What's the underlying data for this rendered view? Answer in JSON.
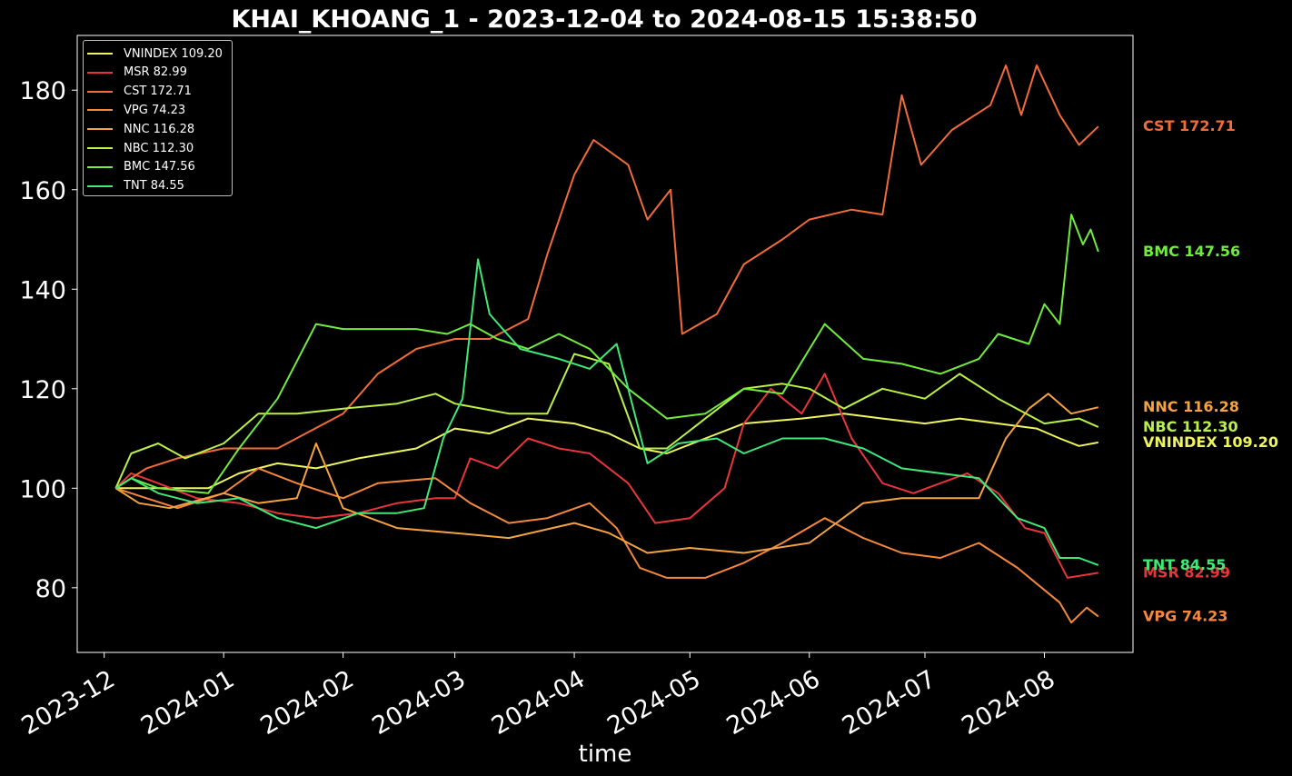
{
  "chart_data": {
    "type": "line",
    "title": "KHAI_KHOANG_1 - 2023-12-04 to 2024-08-15 15:38:50",
    "xlabel": "time",
    "ylabel": "",
    "xlim": [
      "2023-11-24",
      "2024-08-24"
    ],
    "ylim": [
      67,
      191
    ],
    "x_ticks": [
      "2023-12-01",
      "2024-01-01",
      "2024-02-01",
      "2024-03-01",
      "2024-04-01",
      "2024-05-01",
      "2024-06-01",
      "2024-07-01",
      "2024-08-01"
    ],
    "x_tick_labels": [
      "2023-12",
      "2024-01",
      "2024-02",
      "2024-03",
      "2024-04",
      "2024-05",
      "2024-06",
      "2024-07",
      "2024-08"
    ],
    "y_ticks": [
      80,
      100,
      120,
      140,
      160,
      180
    ],
    "grid": false,
    "legend_position": "top-left",
    "background": "#000000",
    "series": [
      {
        "name": "VNINDEX",
        "label": "VNINDEX 109.20",
        "end_label": "VNINDEX 109.20",
        "color": "#eef55e",
        "last": 109.2,
        "points": [
          [
            "2023-12-04",
            100
          ],
          [
            "2023-12-15",
            100
          ],
          [
            "2023-12-28",
            100
          ],
          [
            "2024-01-05",
            103
          ],
          [
            "2024-01-15",
            105
          ],
          [
            "2024-01-25",
            104
          ],
          [
            "2024-02-05",
            106
          ],
          [
            "2024-02-20",
            108
          ],
          [
            "2024-03-01",
            112
          ],
          [
            "2024-03-10",
            111
          ],
          [
            "2024-03-20",
            114
          ],
          [
            "2024-04-01",
            113
          ],
          [
            "2024-04-10",
            111
          ],
          [
            "2024-04-18",
            108
          ],
          [
            "2024-04-25",
            107
          ],
          [
            "2024-05-05",
            110
          ],
          [
            "2024-05-15",
            113
          ],
          [
            "2024-05-30",
            114
          ],
          [
            "2024-06-10",
            115
          ],
          [
            "2024-06-20",
            114
          ],
          [
            "2024-07-01",
            113
          ],
          [
            "2024-07-10",
            114
          ],
          [
            "2024-07-20",
            113
          ],
          [
            "2024-07-30",
            112
          ],
          [
            "2024-08-05",
            110
          ],
          [
            "2024-08-10",
            108.5
          ],
          [
            "2024-08-15",
            109.2
          ]
        ]
      },
      {
        "name": "MSR",
        "label": "MSR 82.99",
        "end_label": "MSR 82.99",
        "color": "#e8353a",
        "last": 82.99,
        "points": [
          [
            "2023-12-04",
            100
          ],
          [
            "2023-12-08",
            103
          ],
          [
            "2023-12-15",
            101
          ],
          [
            "2023-12-25",
            98
          ],
          [
            "2024-01-05",
            97
          ],
          [
            "2024-01-15",
            95
          ],
          [
            "2024-01-25",
            94
          ],
          [
            "2024-02-05",
            95
          ],
          [
            "2024-02-15",
            97
          ],
          [
            "2024-02-25",
            98
          ],
          [
            "2024-03-01",
            98
          ],
          [
            "2024-03-05",
            106
          ],
          [
            "2024-03-12",
            104
          ],
          [
            "2024-03-20",
            110
          ],
          [
            "2024-03-28",
            108
          ],
          [
            "2024-04-05",
            107
          ],
          [
            "2024-04-15",
            101
          ],
          [
            "2024-04-22",
            93
          ],
          [
            "2024-05-01",
            94
          ],
          [
            "2024-05-10",
            100
          ],
          [
            "2024-05-15",
            113
          ],
          [
            "2024-05-22",
            120
          ],
          [
            "2024-05-30",
            115
          ],
          [
            "2024-06-05",
            123
          ],
          [
            "2024-06-12",
            110
          ],
          [
            "2024-06-20",
            101
          ],
          [
            "2024-06-28",
            99
          ],
          [
            "2024-07-05",
            101
          ],
          [
            "2024-07-12",
            103
          ],
          [
            "2024-07-20",
            99
          ],
          [
            "2024-07-27",
            92
          ],
          [
            "2024-08-01",
            91
          ],
          [
            "2024-08-07",
            82
          ],
          [
            "2024-08-15",
            82.99
          ]
        ]
      },
      {
        "name": "CST",
        "label": "CST 172.71",
        "end_label": "CST 172.71",
        "color": "#f26b38",
        "last": 172.71,
        "points": [
          [
            "2023-12-04",
            100
          ],
          [
            "2023-12-12",
            104
          ],
          [
            "2023-12-20",
            106
          ],
          [
            "2024-01-01",
            108
          ],
          [
            "2024-01-15",
            108
          ],
          [
            "2024-02-01",
            115
          ],
          [
            "2024-02-10",
            123
          ],
          [
            "2024-02-20",
            128
          ],
          [
            "2024-03-01",
            130
          ],
          [
            "2024-03-10",
            130
          ],
          [
            "2024-03-20",
            134
          ],
          [
            "2024-03-25",
            147
          ],
          [
            "2024-04-01",
            163
          ],
          [
            "2024-04-06",
            170
          ],
          [
            "2024-04-15",
            165
          ],
          [
            "2024-04-20",
            154
          ],
          [
            "2024-04-26",
            160
          ],
          [
            "2024-04-29",
            131
          ],
          [
            "2024-05-08",
            135
          ],
          [
            "2024-05-15",
            145
          ],
          [
            "2024-05-25",
            150
          ],
          [
            "2024-06-01",
            154
          ],
          [
            "2024-06-12",
            156
          ],
          [
            "2024-06-20",
            155
          ],
          [
            "2024-06-25",
            179
          ],
          [
            "2024-06-30",
            165
          ],
          [
            "2024-07-08",
            172
          ],
          [
            "2024-07-18",
            177
          ],
          [
            "2024-07-22",
            185
          ],
          [
            "2024-07-26",
            175
          ],
          [
            "2024-07-30",
            185
          ],
          [
            "2024-08-05",
            175
          ],
          [
            "2024-08-10",
            169
          ],
          [
            "2024-08-15",
            172.71
          ]
        ]
      },
      {
        "name": "VPG",
        "label": "VPG 74.23",
        "end_label": "VPG 74.23",
        "color": "#f5883d",
        "last": 74.23,
        "points": [
          [
            "2023-12-04",
            100
          ],
          [
            "2023-12-12",
            98
          ],
          [
            "2023-12-20",
            96
          ],
          [
            "2024-01-01",
            99
          ],
          [
            "2024-01-10",
            104
          ],
          [
            "2024-01-20",
            101
          ],
          [
            "2024-02-01",
            98
          ],
          [
            "2024-02-10",
            101
          ],
          [
            "2024-02-25",
            102
          ],
          [
            "2024-03-05",
            97
          ],
          [
            "2024-03-15",
            93
          ],
          [
            "2024-03-25",
            94
          ],
          [
            "2024-04-05",
            97
          ],
          [
            "2024-04-12",
            92
          ],
          [
            "2024-04-18",
            84
          ],
          [
            "2024-04-25",
            82
          ],
          [
            "2024-05-05",
            82
          ],
          [
            "2024-05-15",
            85
          ],
          [
            "2024-05-25",
            89
          ],
          [
            "2024-06-05",
            94
          ],
          [
            "2024-06-15",
            90
          ],
          [
            "2024-06-25",
            87
          ],
          [
            "2024-07-05",
            86
          ],
          [
            "2024-07-15",
            89
          ],
          [
            "2024-07-25",
            84
          ],
          [
            "2024-08-05",
            77
          ],
          [
            "2024-08-08",
            73
          ],
          [
            "2024-08-12",
            76
          ],
          [
            "2024-08-15",
            74.23
          ]
        ]
      },
      {
        "name": "NNC",
        "label": "NNC 116.28",
        "end_label": "NNC 116.28",
        "color": "#f4a340",
        "last": 116.28,
        "points": [
          [
            "2023-12-04",
            100
          ],
          [
            "2023-12-10",
            97
          ],
          [
            "2023-12-18",
            96
          ],
          [
            "2024-01-01",
            99
          ],
          [
            "2024-01-10",
            97
          ],
          [
            "2024-01-20",
            98
          ],
          [
            "2024-01-25",
            109
          ],
          [
            "2024-02-01",
            96
          ],
          [
            "2024-02-15",
            92
          ],
          [
            "2024-03-01",
            91
          ],
          [
            "2024-03-15",
            90
          ],
          [
            "2024-04-01",
            93
          ],
          [
            "2024-04-10",
            91
          ],
          [
            "2024-04-20",
            87
          ],
          [
            "2024-05-01",
            88
          ],
          [
            "2024-05-15",
            87
          ],
          [
            "2024-06-01",
            89
          ],
          [
            "2024-06-15",
            97
          ],
          [
            "2024-06-25",
            98
          ],
          [
            "2024-07-05",
            98
          ],
          [
            "2024-07-15",
            98
          ],
          [
            "2024-07-22",
            110
          ],
          [
            "2024-07-28",
            116
          ],
          [
            "2024-08-02",
            119
          ],
          [
            "2024-08-08",
            115
          ],
          [
            "2024-08-15",
            116.28
          ]
        ]
      },
      {
        "name": "NBC",
        "label": "NBC 112.30",
        "end_label": "NBC 112.30",
        "color": "#b9f148",
        "last": 112.3,
        "points": [
          [
            "2023-12-04",
            100
          ],
          [
            "2023-12-08",
            107
          ],
          [
            "2023-12-15",
            109
          ],
          [
            "2023-12-22",
            106
          ],
          [
            "2024-01-01",
            109
          ],
          [
            "2024-01-10",
            115
          ],
          [
            "2024-01-20",
            115
          ],
          [
            "2024-02-01",
            116
          ],
          [
            "2024-02-15",
            117
          ],
          [
            "2024-02-25",
            119
          ],
          [
            "2024-03-01",
            117
          ],
          [
            "2024-03-15",
            115
          ],
          [
            "2024-03-25",
            115
          ],
          [
            "2024-04-01",
            127
          ],
          [
            "2024-04-10",
            125
          ],
          [
            "2024-04-18",
            108
          ],
          [
            "2024-04-25",
            108
          ],
          [
            "2024-05-05",
            114
          ],
          [
            "2024-05-15",
            120
          ],
          [
            "2024-05-25",
            121
          ],
          [
            "2024-06-01",
            120
          ],
          [
            "2024-06-10",
            116
          ],
          [
            "2024-06-20",
            120
          ],
          [
            "2024-07-01",
            118
          ],
          [
            "2024-07-10",
            123
          ],
          [
            "2024-07-20",
            118
          ],
          [
            "2024-08-01",
            113
          ],
          [
            "2024-08-10",
            114
          ],
          [
            "2024-08-15",
            112.3
          ]
        ]
      },
      {
        "name": "BMC",
        "label": "BMC 147.56",
        "end_label": "BMC 147.56",
        "color": "#70ec3e",
        "last": 147.56,
        "points": [
          [
            "2023-12-04",
            100
          ],
          [
            "2023-12-08",
            102
          ],
          [
            "2023-12-15",
            100
          ],
          [
            "2023-12-28",
            99
          ],
          [
            "2024-01-05",
            108
          ],
          [
            "2024-01-15",
            118
          ],
          [
            "2024-01-25",
            133
          ],
          [
            "2024-02-01",
            132
          ],
          [
            "2024-02-10",
            132
          ],
          [
            "2024-02-20",
            132
          ],
          [
            "2024-02-28",
            131
          ],
          [
            "2024-03-05",
            133
          ],
          [
            "2024-03-12",
            130
          ],
          [
            "2024-03-20",
            128
          ],
          [
            "2024-03-28",
            131
          ],
          [
            "2024-04-05",
            128
          ],
          [
            "2024-04-15",
            120
          ],
          [
            "2024-04-25",
            114
          ],
          [
            "2024-05-05",
            115
          ],
          [
            "2024-05-15",
            120
          ],
          [
            "2024-05-25",
            119
          ],
          [
            "2024-06-05",
            133
          ],
          [
            "2024-06-15",
            126
          ],
          [
            "2024-06-25",
            125
          ],
          [
            "2024-07-05",
            123
          ],
          [
            "2024-07-15",
            126
          ],
          [
            "2024-07-20",
            131
          ],
          [
            "2024-07-28",
            129
          ],
          [
            "2024-08-01",
            137
          ],
          [
            "2024-08-05",
            133
          ],
          [
            "2024-08-08",
            155
          ],
          [
            "2024-08-11",
            149
          ],
          [
            "2024-08-13",
            152
          ],
          [
            "2024-08-15",
            147.56
          ]
        ]
      },
      {
        "name": "TNT",
        "label": "TNT 84.55",
        "end_label": "TNT 84.55",
        "color": "#3fe877",
        "last": 84.55,
        "points": [
          [
            "2023-12-04",
            100
          ],
          [
            "2023-12-08",
            102
          ],
          [
            "2023-12-15",
            99
          ],
          [
            "2023-12-25",
            97
          ],
          [
            "2024-01-05",
            98
          ],
          [
            "2024-01-15",
            94
          ],
          [
            "2024-01-25",
            92
          ],
          [
            "2024-02-05",
            95
          ],
          [
            "2024-02-15",
            95
          ],
          [
            "2024-02-22",
            96
          ],
          [
            "2024-02-27",
            110
          ],
          [
            "2024-03-03",
            118
          ],
          [
            "2024-03-07",
            146
          ],
          [
            "2024-03-10",
            135
          ],
          [
            "2024-03-18",
            128
          ],
          [
            "2024-03-28",
            126
          ],
          [
            "2024-04-05",
            124
          ],
          [
            "2024-04-12",
            129
          ],
          [
            "2024-04-20",
            105
          ],
          [
            "2024-04-28",
            109
          ],
          [
            "2024-05-08",
            110
          ],
          [
            "2024-05-15",
            107
          ],
          [
            "2024-05-25",
            110
          ],
          [
            "2024-06-05",
            110
          ],
          [
            "2024-06-15",
            108
          ],
          [
            "2024-06-25",
            104
          ],
          [
            "2024-07-05",
            103
          ],
          [
            "2024-07-15",
            102
          ],
          [
            "2024-07-25",
            94
          ],
          [
            "2024-08-01",
            92
          ],
          [
            "2024-08-05",
            86
          ],
          [
            "2024-08-10",
            86
          ],
          [
            "2024-08-15",
            84.55
          ]
        ]
      }
    ]
  }
}
